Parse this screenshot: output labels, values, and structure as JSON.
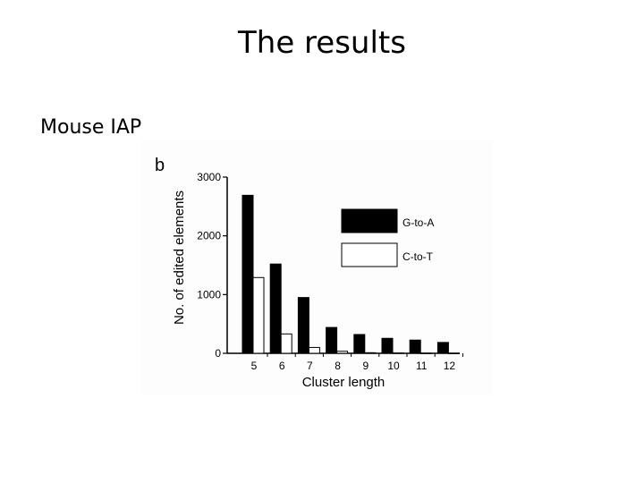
{
  "slide": {
    "title": "The results",
    "subtitle": "Mouse IAP"
  },
  "chart_data": {
    "type": "bar",
    "panel_label": "b",
    "title": "",
    "xlabel": "Cluster length",
    "ylabel": "No. of edited elements",
    "categories": [
      "5",
      "6",
      "7",
      "8",
      "9",
      "10",
      "11",
      "12"
    ],
    "series": [
      {
        "name": "G-to-A",
        "values": [
          2690,
          1520,
          950,
          440,
          320,
          255,
          225,
          185
        ],
        "fill": "#000000"
      },
      {
        "name": "C-to-T",
        "values": [
          1290,
          330,
          100,
          35,
          10,
          5,
          3,
          2
        ],
        "fill": "#ffffff"
      }
    ],
    "ylim": [
      0,
      3000
    ],
    "yticks": [
      0,
      1000,
      2000,
      3000
    ],
    "grid": false,
    "legend": "top-right"
  }
}
